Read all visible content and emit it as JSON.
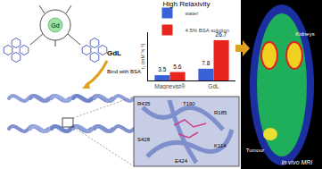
{
  "chart_data": {
    "type": "bar",
    "title": "High Relaxivity",
    "y_label": "r₁ (mM⁻¹s⁻¹)",
    "categories": [
      "Magnevist®",
      "GdL"
    ],
    "series": [
      {
        "name": "water",
        "color": "#3a62d8",
        "values": [
          3.5,
          7.8
        ]
      },
      {
        "name": "4.5% BSA solution",
        "color": "#e8251f",
        "values": [
          5.6,
          26.7
        ]
      }
    ],
    "ylim": [
      0,
      32
    ],
    "tick_labels": "x",
    "data_labels": true,
    "legend": "top",
    "grid": false
  },
  "molecule": {
    "metal": "Gd",
    "name": "GdL"
  },
  "arrow_label": "Bind with BSA",
  "residues": [
    "R435",
    "T190",
    "R185",
    "S428",
    "K114",
    "E424"
  ],
  "mri": {
    "labels": [
      "Kidneys",
      "Tumour"
    ],
    "caption": "in vivo MRI"
  }
}
